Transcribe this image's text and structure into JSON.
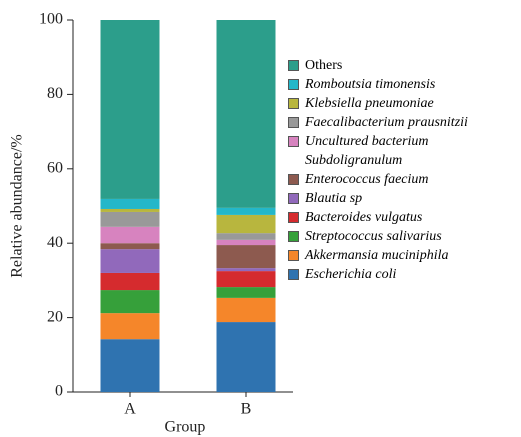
{
  "chart_data": {
    "type": "stacked_bar",
    "xlabel": "Group",
    "ylabel": "Relative abundance/%",
    "categories": [
      "A",
      "B"
    ],
    "ylim": [
      0,
      100
    ],
    "yticks": [
      0,
      20,
      40,
      60,
      80,
      100
    ],
    "series": [
      {
        "name": "Escherichia coli",
        "color": "#2f73b0",
        "values": [
          14.2,
          18.8
        ]
      },
      {
        "name": "Akkermansia muciniphila",
        "color": "#f5862a",
        "values": [
          7.0,
          6.5
        ]
      },
      {
        "name": "Streptococcus salivarius",
        "color": "#36a03a",
        "values": [
          6.2,
          2.9
        ]
      },
      {
        "name": "Bacteroides vulgatus",
        "color": "#d52b2e",
        "values": [
          4.6,
          4.3
        ]
      },
      {
        "name": "Blautia sp",
        "color": "#9169bb",
        "values": [
          6.4,
          0.8
        ]
      },
      {
        "name": "Enterococcus faecium",
        "color": "#8d5a4f",
        "values": [
          1.6,
          6.2
        ]
      },
      {
        "name": "Uncultured bacterium Subdoligranulum",
        "color": "#d783bf",
        "values": [
          4.4,
          1.4
        ]
      },
      {
        "name": "Faecalibacterium prausnitzii",
        "color": "#999999",
        "values": [
          4.0,
          1.8
        ]
      },
      {
        "name": "Klebsiella pneumoniae",
        "color": "#b8b63e",
        "values": [
          0.8,
          4.9
        ]
      },
      {
        "name": "Romboutsia timonensis",
        "color": "#24b7c9",
        "values": [
          2.7,
          1.9
        ]
      },
      {
        "name": "Others",
        "color": "#2c9e8b",
        "values": [
          48.1,
          50.5
        ]
      }
    ]
  }
}
